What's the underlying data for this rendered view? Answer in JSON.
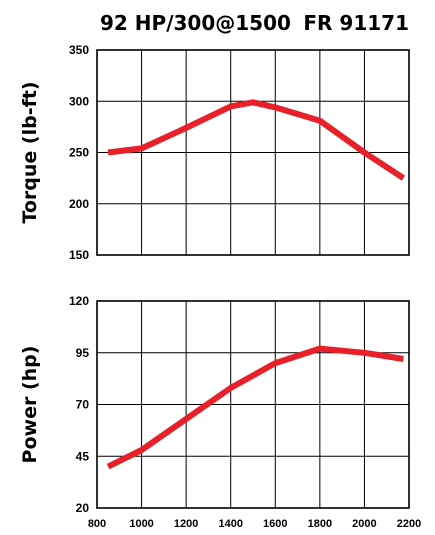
{
  "header": {
    "left": "92 HP/300@1500",
    "right": "FR 91171"
  },
  "colors": {
    "line": "#e8202a",
    "grid": "#000000"
  },
  "chart_data": [
    {
      "type": "line",
      "title": "",
      "xlabel": "",
      "ylabel": "Torque (lb-ft)",
      "xlim": [
        800,
        2200
      ],
      "ylim": [
        150,
        350
      ],
      "x_ticks": [],
      "y_ticks": [
        "150",
        "200",
        "250",
        "300",
        "350"
      ],
      "grid": true,
      "series": [
        {
          "x": [
            850,
            1000,
            1200,
            1400,
            1500,
            1600,
            1800,
            2000,
            2175
          ],
          "values": [
            250,
            254,
            274,
            295,
            299,
            294,
            281,
            250,
            225
          ]
        }
      ]
    },
    {
      "type": "line",
      "title": "",
      "xlabel": "",
      "ylabel": "Power (hp)",
      "xlim": [
        800,
        2200
      ],
      "ylim": [
        20,
        120
      ],
      "x_ticks": [
        "800",
        "1000",
        "1200",
        "1400",
        "1600",
        "1800",
        "2000",
        "2200"
      ],
      "y_ticks": [
        "20",
        "45",
        "70",
        "95",
        "120"
      ],
      "grid": true,
      "series": [
        {
          "x": [
            850,
            1000,
            1200,
            1400,
            1600,
            1800,
            2000,
            2175
          ],
          "values": [
            40,
            48,
            63,
            78,
            90,
            97,
            95,
            92
          ]
        }
      ]
    }
  ]
}
